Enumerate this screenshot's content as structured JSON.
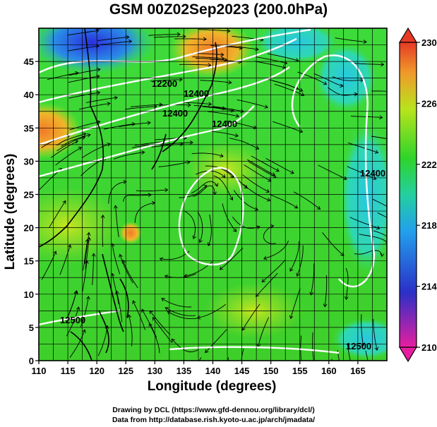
{
  "title": "GSM 00Z02Sep2023 (200.0hPa)",
  "x_axis": {
    "label": "Longitude (degrees)",
    "ticks": [
      "110",
      "115",
      "120",
      "125",
      "130",
      "135",
      "140",
      "145",
      "150",
      "155",
      "160",
      "165"
    ],
    "range": [
      110,
      170
    ]
  },
  "y_axis": {
    "label": "Latitude  (degrees)",
    "ticks": [
      "0",
      "5",
      "10",
      "15",
      "20",
      "25",
      "30",
      "35",
      "40",
      "45"
    ],
    "range": [
      0,
      50
    ]
  },
  "colorbar": {
    "ticks": [
      "210",
      "214",
      "218",
      "222",
      "226",
      "230"
    ],
    "range": [
      210,
      230
    ]
  },
  "contour_labels": [
    "12200",
    "12400",
    "12400",
    "12400",
    "12400",
    "12500",
    "12500"
  ],
  "credits": [
    "Drawing by DCL (https://www.gfd-dennou.org/library/dcl/)",
    "Data from http://database.rish.kyoto-u.ac.jp/arch/jmadata/"
  ],
  "colors": {
    "low": "#e81ea0",
    "blue": "#1a2ce0",
    "cyan": "#29c8e6",
    "green": "#22c81e",
    "lime": "#a6e21a",
    "orange": "#f09a2a",
    "high": "#e63a26"
  }
}
